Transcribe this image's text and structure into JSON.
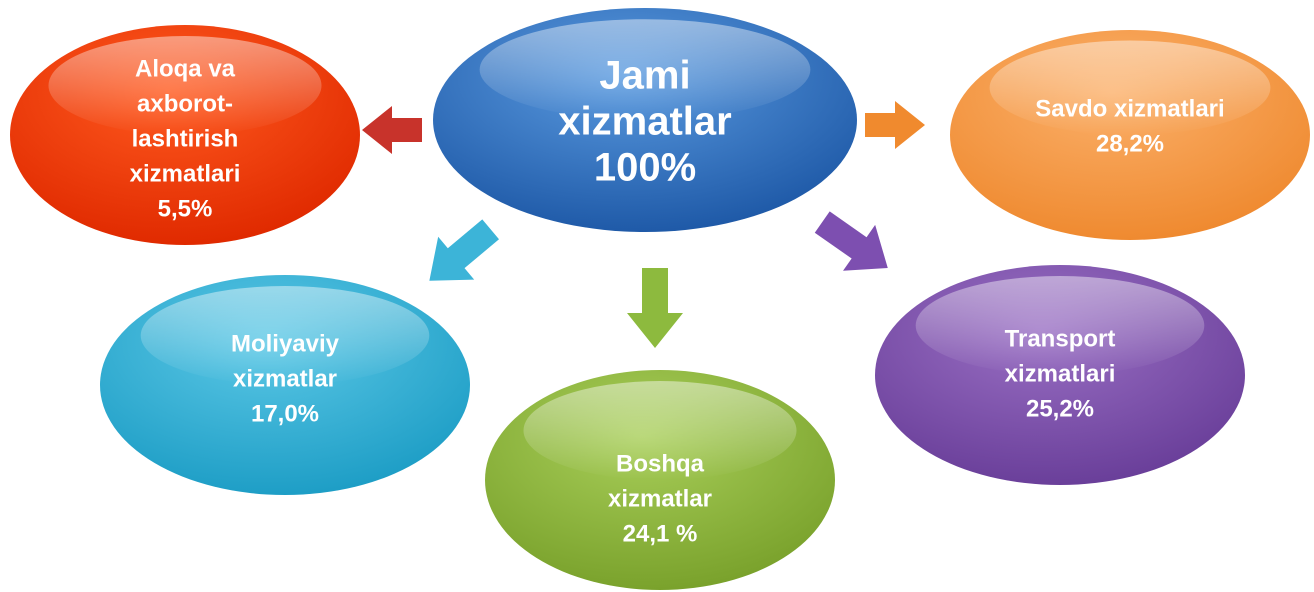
{
  "nodes": [
    {
      "lines": [
        "Jami",
        "xizmatlar",
        "100%"
      ]
    },
    {
      "lines": [
        "Aloqa va",
        "axborot-",
        "lashtirish",
        "xizmatlari",
        "5,5%"
      ]
    },
    {
      "lines": [
        "Savdo xizmatlari",
        "28,2%"
      ]
    },
    {
      "lines": [
        "Moliyaviy",
        "xizmatlar",
        "17,0%"
      ]
    },
    {
      "lines": [
        "Boshqa",
        "xizmatlar",
        "24,1 %"
      ]
    },
    {
      "lines": [
        "Transport",
        "xizmatlari",
        "25,2%"
      ]
    }
  ]
}
